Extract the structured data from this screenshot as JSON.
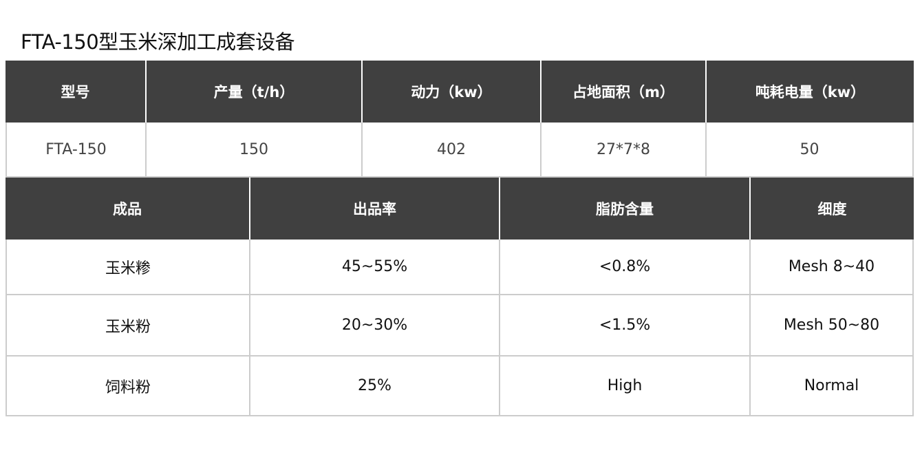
{
  "title": "FTA-150型玉米深加工成套设备",
  "spec_table": {
    "headers": [
      "型号",
      "产量（t/h）",
      "动力（kw）",
      "占地面积（m）",
      "吨耗电量（kw）"
    ],
    "rows": [
      [
        "FTA-150",
        "150",
        "402",
        "27*7*8",
        "50"
      ]
    ]
  },
  "product_table": {
    "headers": [
      "成品",
      "出品率",
      "脂肪含量",
      "细度"
    ],
    "rows": [
      [
        "玉米糁",
        "45~55%",
        "<0.8%",
        "Mesh 8~40"
      ],
      [
        "玉米粉",
        "20~30%",
        "<1.5%",
        "Mesh 50~80"
      ],
      [
        "饲料粉",
        "25%",
        "High",
        "Normal"
      ]
    ]
  },
  "colors": {
    "header_bg": "#404040",
    "border": "#cccccc"
  }
}
